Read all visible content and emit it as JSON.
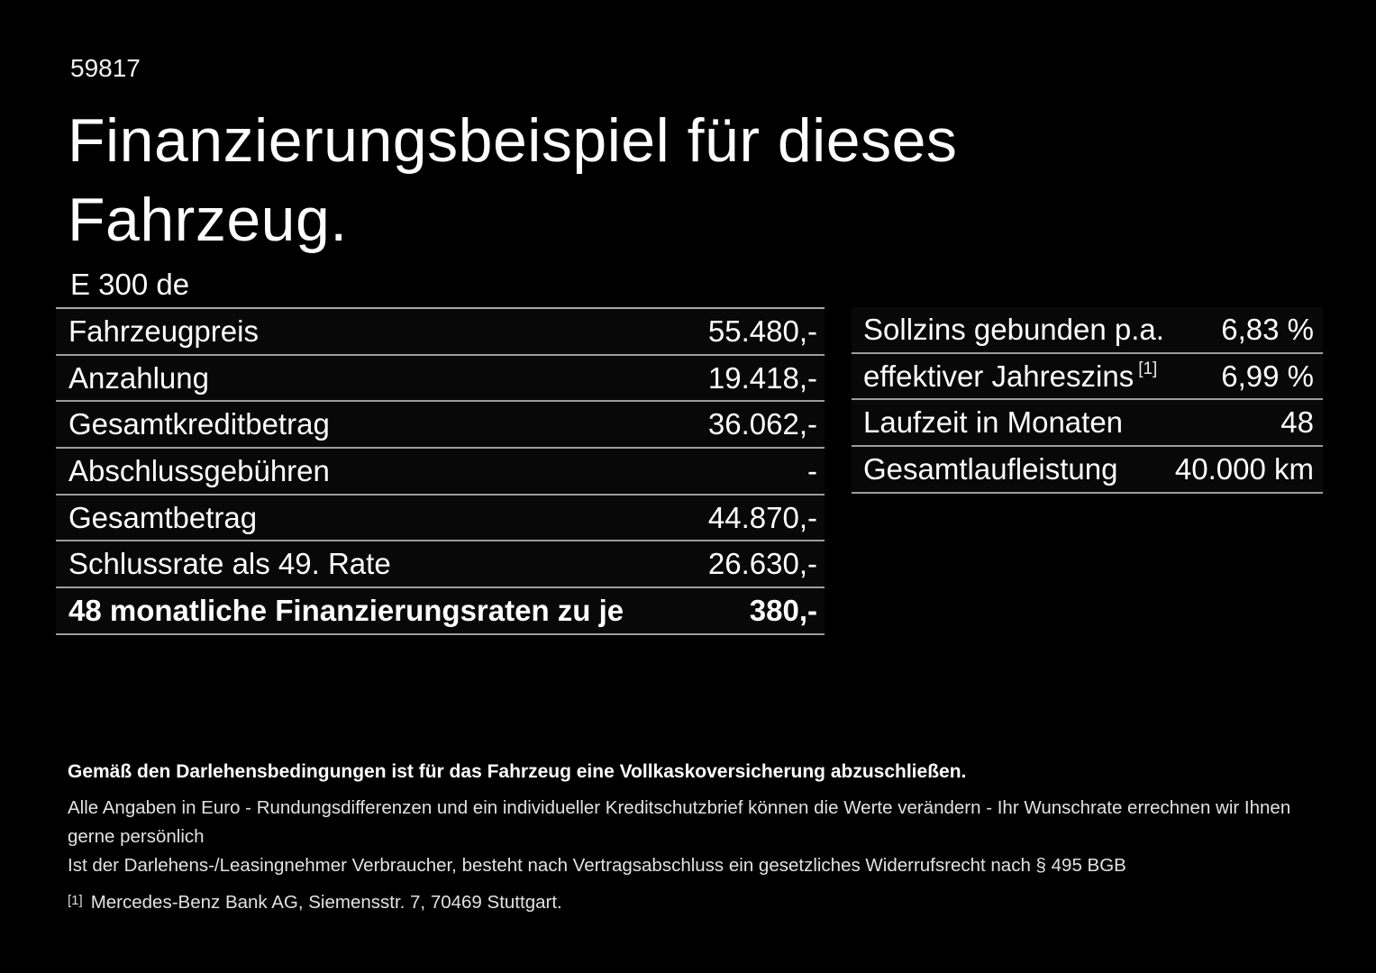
{
  "page": {
    "doc_number": "59817",
    "title": "Finanzierungsbeispiel für dieses Fahrzeug.",
    "model": "E 300 de",
    "colors": {
      "background": "#000000",
      "text": "#fdfdfd",
      "separator": "#9c9c9c",
      "fine_print": "#e2e2e2"
    }
  },
  "finance_table": {
    "rows": [
      {
        "label": "Fahrzeugpreis",
        "value": "55.480,-"
      },
      {
        "label": "Anzahlung",
        "value": "19.418,-"
      },
      {
        "label": "Gesamtkreditbetrag",
        "value": "36.062,-"
      },
      {
        "label": "Abschlussgebühren",
        "value": "-"
      },
      {
        "label": "Gesamtbetrag",
        "value": "44.870,-"
      },
      {
        "label": "Schlussrate als 49. Rate",
        "value": "26.630,-"
      },
      {
        "label": "48 monatliche Finanzierungsraten zu je",
        "value": "380,-"
      }
    ]
  },
  "conditions_table": {
    "rows": [
      {
        "label": "Sollzins gebunden p.a.",
        "sup": "",
        "value": "6,83 %"
      },
      {
        "label": "effektiver Jahreszins",
        "sup": "[1]",
        "value": "6,99 %"
      },
      {
        "label": "Laufzeit in Monaten",
        "sup": "",
        "value": "48"
      },
      {
        "label": "Gesamtlaufleistung",
        "sup": "",
        "value": "40.000 km"
      }
    ]
  },
  "footnotes": {
    "bold_note": "Gemäß den Darlehensbedingungen ist für das Fahrzeug eine Vollkaskoversicherung abzuschließen.",
    "note1": "Alle Angaben in Euro - Rundungsdifferenzen und ein individueller Kreditschutzbrief können die Werte verändern - Ihr Wunschrate errechnen wir Ihnen gerne persönlich",
    "note2": "Ist der Darlehens-/Leasingnehmer Verbraucher, besteht nach Vertragsabschluss ein gesetzliches Widerrufsrecht nach § 495 BGB",
    "ref_marker": "[1]",
    "ref_text": "Mercedes-Benz Bank AG, Siemensstr. 7, 70469 Stuttgart."
  }
}
